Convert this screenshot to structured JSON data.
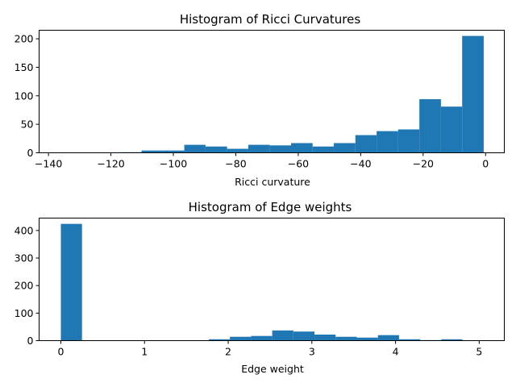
{
  "chart_data": [
    {
      "type": "bar",
      "title": "Histogram of Ricci Curvatures",
      "xlabel": "Ricci curvature",
      "ylabel": "",
      "xlim": [
        -143,
        6
      ],
      "ylim": [
        0,
        215
      ],
      "xticks": [
        -140,
        -120,
        -100,
        -80,
        -60,
        -40,
        -20,
        0
      ],
      "yticks": [
        0,
        50,
        100,
        150,
        200
      ],
      "bin_edges": [
        -137.6,
        -130.8,
        -123.9,
        -117.1,
        -110.2,
        -103.4,
        -96.5,
        -89.7,
        -82.8,
        -76.0,
        -69.1,
        -62.3,
        -55.4,
        -48.6,
        -41.7,
        -34.9,
        -28.0,
        -21.2,
        -14.3,
        -7.5,
        -0.6
      ],
      "values": [
        0,
        0,
        0,
        1,
        4,
        4,
        14,
        11,
        7,
        14,
        13,
        17,
        11,
        17,
        31,
        38,
        41,
        94,
        81,
        205
      ],
      "color": "#1f77b4"
    },
    {
      "type": "bar",
      "title": "Histogram of Edge weights",
      "xlabel": "Edge weight",
      "ylabel": "",
      "xlim": [
        -0.26,
        5.3
      ],
      "ylim": [
        0,
        445
      ],
      "xticks": [
        0,
        1,
        2,
        3,
        4,
        5
      ],
      "yticks": [
        0,
        100,
        200,
        300,
        400
      ],
      "bin_edges": [
        0.0,
        0.2526,
        0.5052,
        0.7578,
        1.0104,
        1.263,
        1.5156,
        1.7682,
        2.0208,
        2.2734,
        2.526,
        2.7786,
        3.0312,
        3.2838,
        3.5364,
        3.789,
        4.0416,
        4.2942,
        4.5468,
        4.7994,
        5.052
      ],
      "values": [
        424,
        0,
        0,
        0,
        0,
        0,
        0,
        5,
        14,
        17,
        37,
        33,
        22,
        14,
        11,
        20,
        5,
        2,
        5,
        1
      ],
      "color": "#1f77b4"
    }
  ]
}
